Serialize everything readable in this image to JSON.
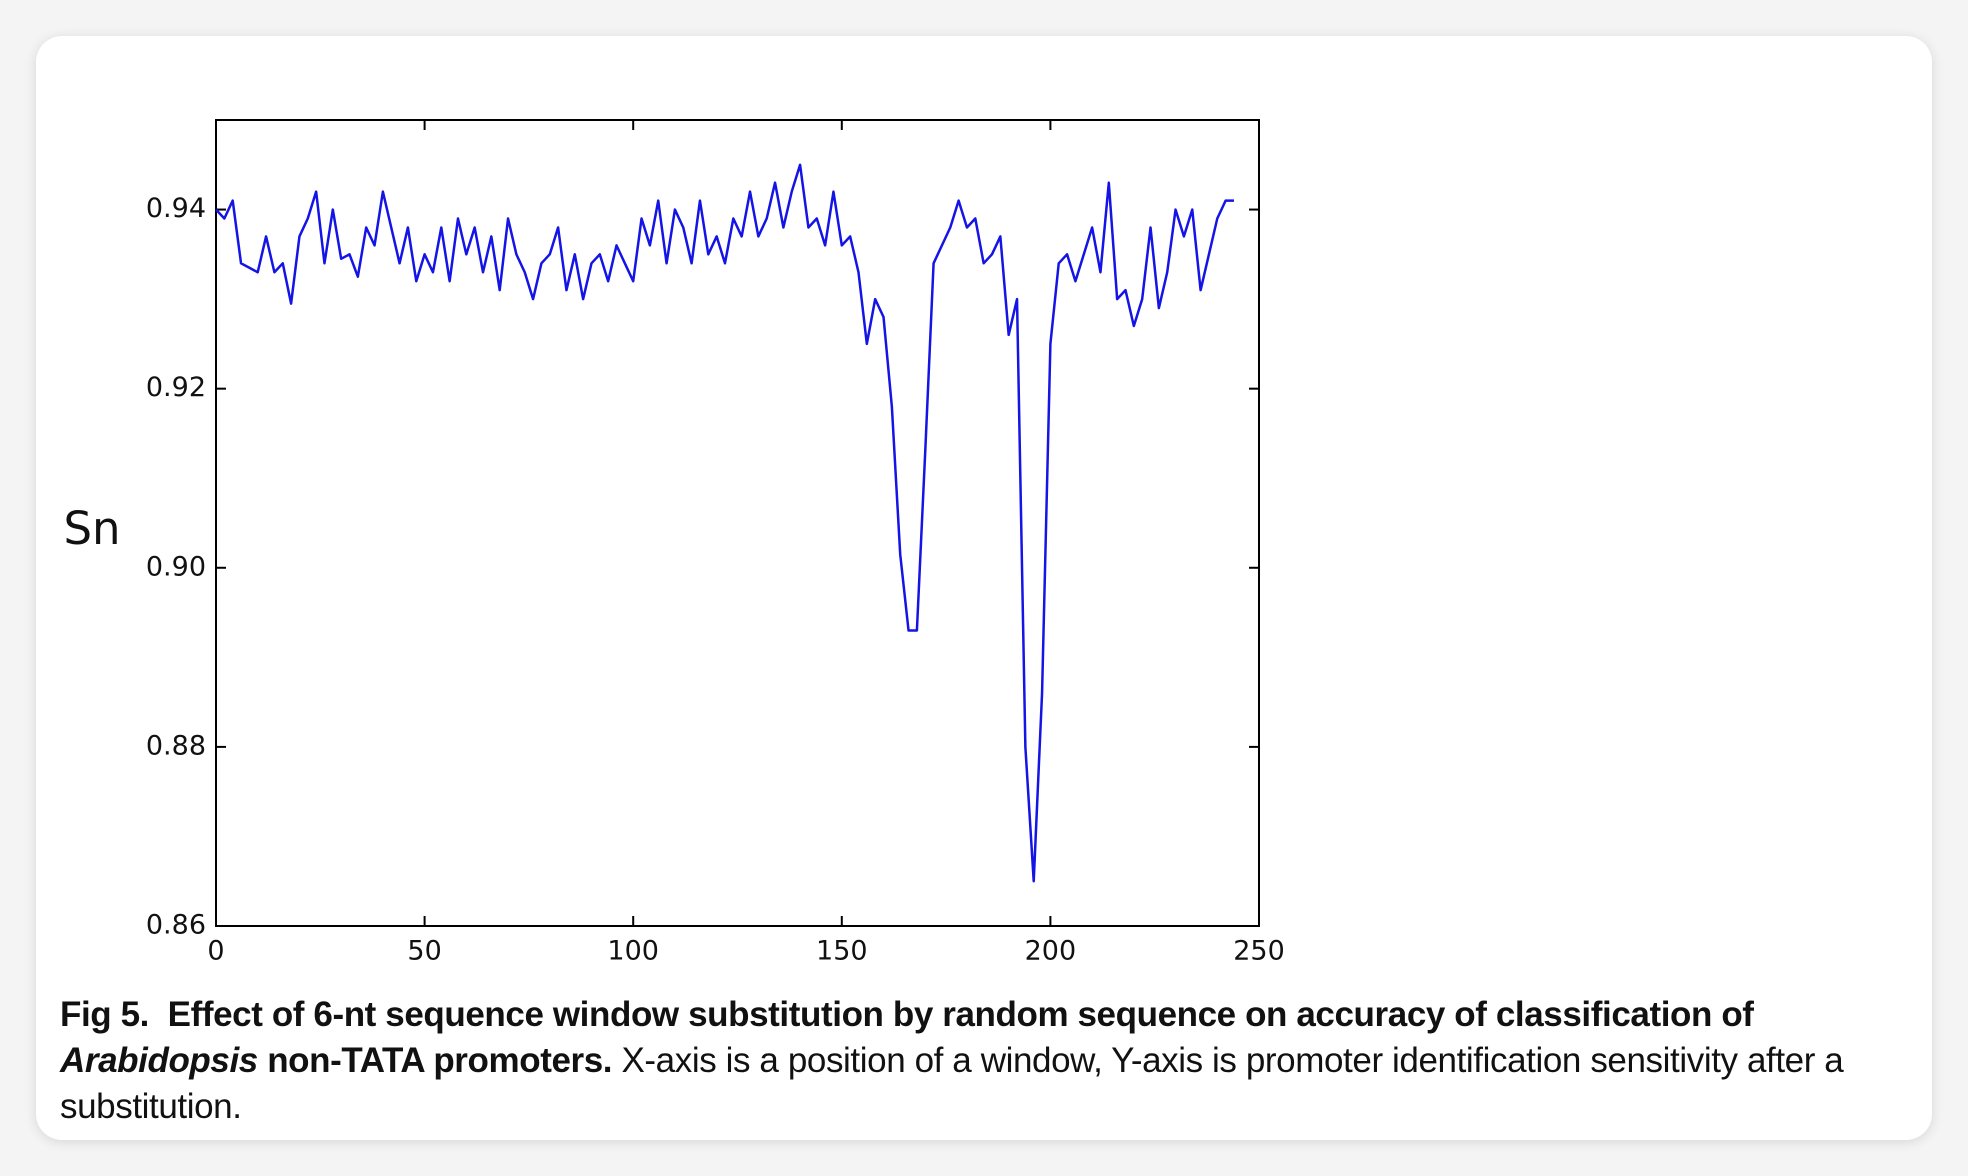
{
  "chart_data": {
    "type": "line",
    "ylabel": "Sn",
    "color": "#1414e6",
    "xlim": [
      0,
      250
    ],
    "xticks": [
      0,
      50,
      100,
      150,
      200,
      250
    ],
    "ylim": [
      0.86,
      0.95
    ],
    "yticks": [
      0.86,
      0.88,
      {
        "value": 0.9,
        "label": "0.90"
      },
      0.92,
      0.94
    ],
    "x": [
      0,
      2,
      4,
      6,
      8,
      10,
      12,
      14,
      16,
      18,
      20,
      22,
      24,
      26,
      28,
      30,
      32,
      34,
      36,
      38,
      40,
      42,
      44,
      46,
      48,
      50,
      52,
      54,
      56,
      58,
      60,
      62,
      64,
      66,
      68,
      70,
      72,
      74,
      76,
      78,
      80,
      82,
      84,
      86,
      88,
      90,
      92,
      94,
      96,
      98,
      100,
      102,
      104,
      106,
      108,
      110,
      112,
      114,
      116,
      118,
      120,
      122,
      124,
      126,
      128,
      130,
      132,
      134,
      136,
      138,
      140,
      142,
      144,
      146,
      148,
      150,
      152,
      154,
      156,
      158,
      160,
      162,
      164,
      166,
      168,
      170,
      172,
      174,
      176,
      178,
      180,
      182,
      184,
      186,
      188,
      190,
      192,
      194,
      196,
      198,
      200,
      202,
      204,
      206,
      208,
      210,
      212,
      214,
      216,
      218,
      220,
      222,
      224,
      226,
      228,
      230,
      232,
      234,
      236,
      238,
      240,
      242,
      244
    ],
    "values": [
      0.94,
      0.939,
      0.941,
      0.934,
      0.9335,
      0.933,
      0.937,
      0.933,
      0.934,
      0.9295,
      0.937,
      0.939,
      0.942,
      0.934,
      0.94,
      0.9345,
      0.935,
      0.9325,
      0.938,
      0.936,
      0.942,
      0.938,
      0.934,
      0.938,
      0.932,
      0.935,
      0.933,
      0.938,
      0.932,
      0.939,
      0.935,
      0.938,
      0.933,
      0.937,
      0.931,
      0.939,
      0.935,
      0.933,
      0.93,
      0.934,
      0.935,
      0.938,
      0.931,
      0.935,
      0.93,
      0.934,
      0.935,
      0.932,
      0.936,
      0.934,
      0.932,
      0.939,
      0.936,
      0.941,
      0.934,
      0.94,
      0.938,
      0.934,
      0.941,
      0.935,
      0.937,
      0.934,
      0.939,
      0.937,
      0.942,
      0.937,
      0.939,
      0.943,
      0.938,
      0.942,
      0.945,
      0.938,
      0.939,
      0.936,
      0.942,
      0.936,
      0.937,
      0.933,
      0.925,
      0.93,
      0.928,
      0.918,
      0.9015,
      0.893,
      0.893,
      0.913,
      0.934,
      0.936,
      0.938,
      0.941,
      0.938,
      0.939,
      0.934,
      0.935,
      0.937,
      0.926,
      0.93,
      0.88,
      0.865,
      0.886,
      0.925,
      0.934,
      0.935,
      0.932,
      0.935,
      0.938,
      0.933,
      0.943,
      0.93,
      0.931,
      0.927,
      0.93,
      0.938,
      0.929,
      0.933,
      0.94,
      0.937,
      0.94,
      0.931,
      0.935,
      0.939,
      0.941,
      0.941
    ]
  },
  "caption": {
    "label": "Fig 5.",
    "title_before": "Effect of 6-nt sequence window substitution by random sequence on accuracy of classification of",
    "title_italic": "Arabidopsis",
    "title_after": "non-TATA promoters.",
    "text": "X-axis is a position of a window, Y-axis is promoter identification sensitivity after a substitution."
  }
}
